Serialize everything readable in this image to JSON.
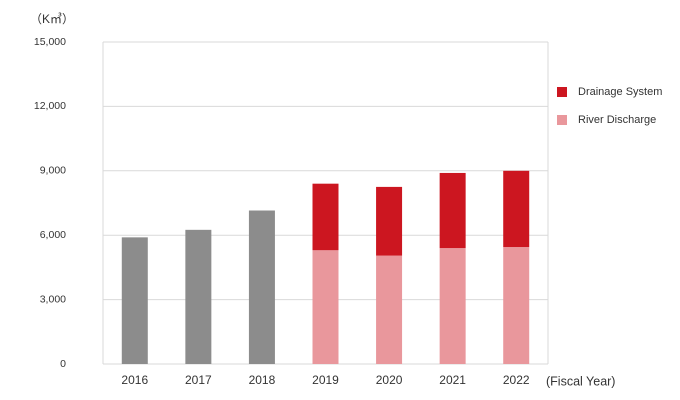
{
  "chart_data": {
    "type": "stacked_bar",
    "unit_label": "（K㎥）",
    "x_label": "(Fiscal Year)",
    "categories": [
      "2016",
      "2017",
      "2018",
      "2019",
      "2020",
      "2021",
      "2022"
    ],
    "series": [
      {
        "name": null,
        "color": "#8c8c8c",
        "values": [
          5900,
          6250,
          7150,
          null,
          null,
          null,
          null
        ]
      },
      {
        "name": "River Discharge",
        "color": "#e9979c",
        "values": [
          null,
          null,
          null,
          5300,
          5050,
          5400,
          5450
        ]
      },
      {
        "name": "Drainage System",
        "color": "#cc1620",
        "values": [
          null,
          null,
          null,
          3100,
          3200,
          3500,
          3550
        ]
      }
    ],
    "ylim": [
      0,
      15000
    ],
    "yticks": [
      0,
      {
        "value": 3000,
        "label": "3,000"
      },
      {
        "value": 6000,
        "label": "6,000"
      },
      {
        "value": 9000,
        "label": "9,000"
      },
      {
        "value": 12000,
        "label": "12,000"
      },
      {
        "value": 15000,
        "label": "15,000"
      }
    ],
    "grid": true,
    "legend": "right"
  }
}
